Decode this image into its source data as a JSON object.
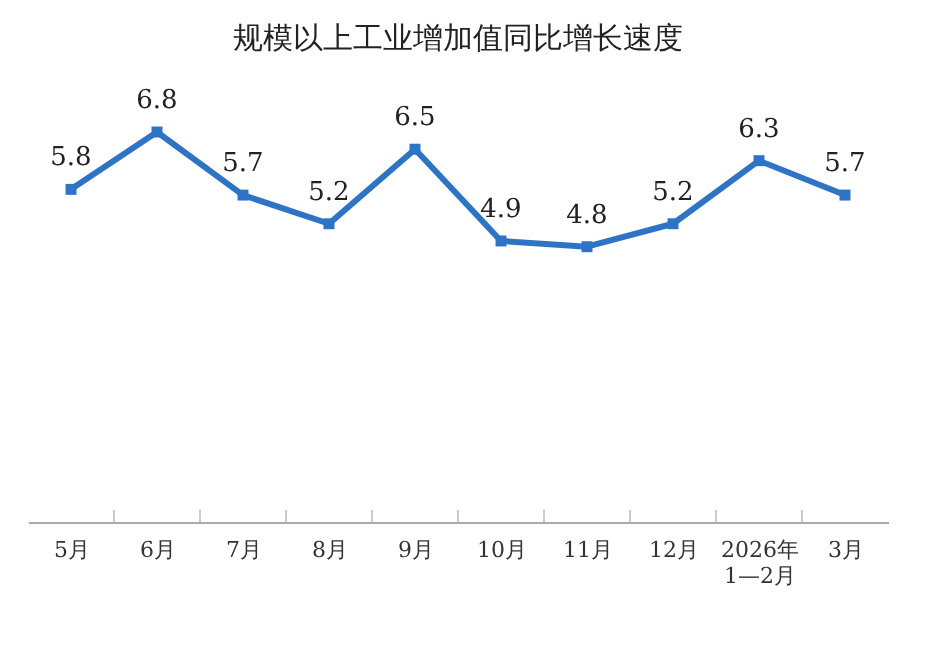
{
  "chart_data": {
    "type": "line",
    "title": "规模以上工业增加值同比增长速度",
    "categories": [
      "5月",
      "6月",
      "7月",
      "8月",
      "9月",
      "10月",
      "11月",
      "12月",
      "2026年\n1—2月",
      "3月"
    ],
    "series": [
      {
        "color": "#2e74c5",
        "values": [
          5.8,
          6.8,
          5.7,
          5.2,
          6.5,
          4.9,
          4.8,
          5.2,
          6.3,
          5.7
        ]
      }
    ],
    "data_labels": true,
    "marker": "square",
    "line_style": "solid"
  }
}
